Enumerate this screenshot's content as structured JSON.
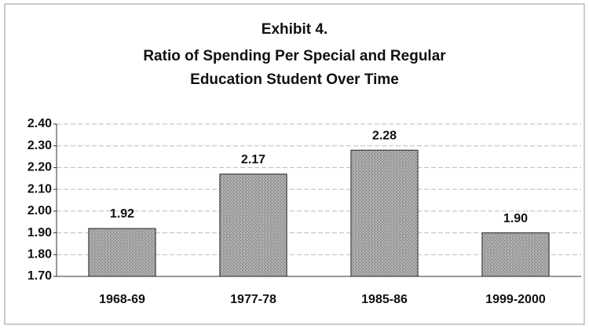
{
  "chart_data": {
    "type": "bar",
    "title": "Exhibit 4.",
    "subtitle": [
      "Ratio of Spending Per Special and Regular",
      "Education Student Over Time"
    ],
    "categories": [
      "1968-69",
      "1977-78",
      "1985-86",
      "1999-2000"
    ],
    "values": [
      1.92,
      2.17,
      2.28,
      1.9
    ],
    "value_labels": [
      "1.92",
      "2.17",
      "2.28",
      "1.90"
    ],
    "color": "#9a9a9a",
    "ylim": [
      1.7,
      2.4
    ],
    "yticks": [
      {
        "value": 1.7,
        "label": "1.70"
      },
      {
        "value": 1.8,
        "label": "1.80"
      },
      {
        "value": 1.9,
        "label": "1.90"
      },
      {
        "value": 2.0,
        "label": "2.00"
      },
      {
        "value": 2.1,
        "label": "2.10"
      },
      {
        "value": 2.2,
        "label": "2.20"
      },
      {
        "value": 2.3,
        "label": "2.30"
      },
      {
        "value": 2.4,
        "label": "2.40"
      }
    ],
    "grid": true
  }
}
